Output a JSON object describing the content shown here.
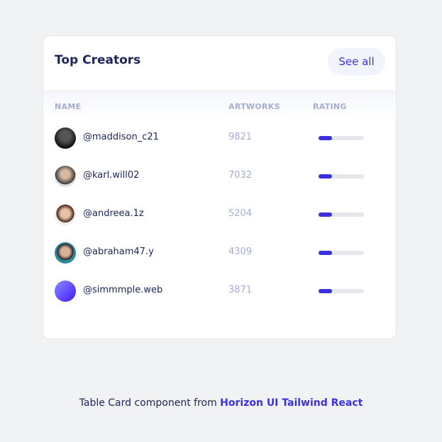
{
  "header": {
    "title": "Top Creators",
    "button": "See all"
  },
  "table": {
    "columns": [
      "NAME",
      "ARTWORKS",
      "RATING"
    ],
    "rows": [
      {
        "name": "@maddison_c21",
        "artworks": 9821,
        "rating": 30
      },
      {
        "name": "@karl.will02",
        "artworks": 7032,
        "rating": 30
      },
      {
        "name": "@andreea.1z",
        "artworks": 5204,
        "rating": 30
      },
      {
        "name": "@abraham47.y",
        "artworks": 4309,
        "rating": 30
      },
      {
        "name": "@simmmple.web",
        "artworks": 3871,
        "rating": 30
      }
    ]
  },
  "footer": {
    "text": "Table Card component from",
    "link": "Horizon UI Tailwind React"
  }
}
